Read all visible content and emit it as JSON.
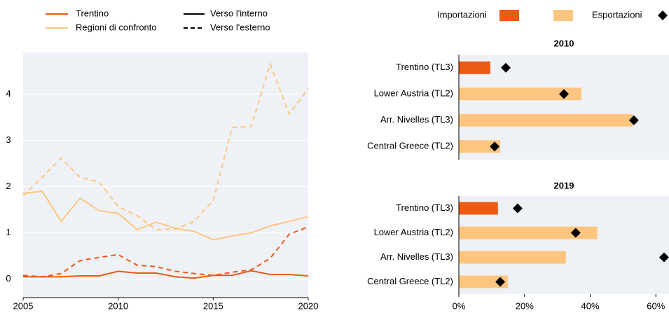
{
  "chart_data": [
    {
      "type": "line",
      "x": [
        2005,
        2006,
        2007,
        2008,
        2009,
        2010,
        2011,
        2012,
        2013,
        2014,
        2015,
        2016,
        2017,
        2018,
        2019,
        2020
      ],
      "xlim": [
        2005,
        2020
      ],
      "xticks": [
        2005,
        2010,
        2015,
        2020
      ],
      "ylim": [
        -0.4,
        4.9
      ],
      "yticks": [
        0,
        1,
        2,
        3,
        4
      ],
      "series": [
        {
          "name": "Trentino",
          "color": "#ec5a14",
          "dash": false,
          "values": [
            0.05,
            0.05,
            0.05,
            0.07,
            0.07,
            0.17,
            0.13,
            0.13,
            0.05,
            0.02,
            0.08,
            0.08,
            0.18,
            0.1,
            0.1,
            0.07
          ]
        },
        {
          "name": "Trentino",
          "color": "#ec5a14",
          "dash": true,
          "values": [
            0.08,
            0.05,
            0.12,
            0.4,
            0.47,
            0.53,
            0.3,
            0.27,
            0.17,
            0.12,
            0.08,
            0.15,
            0.2,
            0.45,
            0.97,
            1.13
          ]
        },
        {
          "name": "Regioni di confronto",
          "color": "#fdc57f",
          "dash": false,
          "values": [
            1.85,
            1.9,
            1.25,
            1.75,
            1.48,
            1.42,
            1.07,
            1.23,
            1.1,
            1.03,
            0.85,
            0.93,
            1.0,
            1.15,
            1.25,
            1.35
          ]
        },
        {
          "name": "Regioni di confronto",
          "color": "#fdc57f",
          "dash": true,
          "values": [
            1.8,
            2.2,
            2.62,
            2.2,
            2.1,
            1.57,
            1.37,
            1.07,
            1.08,
            1.25,
            1.7,
            3.28,
            3.3,
            4.65,
            3.57,
            4.12
          ]
        }
      ],
      "line_styles": [
        {
          "name": "Verso l'interno",
          "dash": false
        },
        {
          "name": "Verso l'esterno",
          "dash": true
        }
      ]
    },
    {
      "type": "bar",
      "legend": [
        "Importazioni",
        "Esportazioni"
      ],
      "categories": [
        "Trentino (TL3)",
        "Lower Austria (TL2)",
        "Arr. Nivelles (TL3)",
        "Central Greece (TL2)"
      ],
      "import_colors": [
        "#ec5a14",
        "#fdc57f",
        "#fdc57f",
        "#fdc57f"
      ],
      "export_color": "#000000",
      "xlim": [
        0,
        64
      ],
      "xticks": [
        {
          "value": 0,
          "label": "0%"
        },
        {
          "value": 20,
          "label": "20%"
        },
        {
          "value": 40,
          "label": "40%"
        },
        {
          "value": 60,
          "label": "60%"
        }
      ],
      "panels": [
        {
          "title": "2010",
          "imports": [
            9.6,
            37.3,
            52.9,
            12.6
          ],
          "exports": [
            14.3,
            32,
            53.3,
            10.9
          ]
        },
        {
          "title": "2019",
          "imports": [
            11.9,
            42.2,
            32.6,
            14.9
          ],
          "exports": [
            17.9,
            35.6,
            62.5,
            12.6
          ]
        }
      ]
    }
  ]
}
